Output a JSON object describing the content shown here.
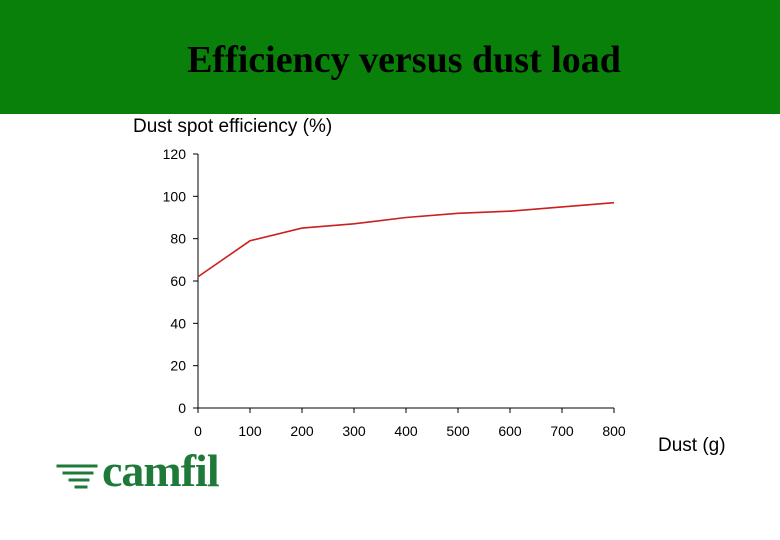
{
  "header": {
    "title": "Efficiency versus dust load"
  },
  "brand": {
    "logo_text": "camfil",
    "logo_color": "#1f7a3a",
    "banner_color": "#098009"
  },
  "chart_data": {
    "type": "line",
    "title": "Efficiency versus dust load",
    "ylabel": "Dust spot efficiency (%)",
    "xlabel": "Dust (g)",
    "x": [
      0,
      100,
      200,
      300,
      400,
      500,
      600,
      700,
      800
    ],
    "series": [
      {
        "values": [
          62,
          79,
          85,
          87,
          90,
          92,
          93,
          95,
          97
        ],
        "color": "#cc1f1f"
      }
    ],
    "xlim": [
      0,
      800
    ],
    "ylim": [
      0,
      120
    ],
    "xticks": [
      0,
      100,
      200,
      300,
      400,
      500,
      600,
      700,
      800
    ],
    "yticks": [
      0,
      20,
      40,
      60,
      80,
      100,
      120
    ],
    "grid": false,
    "legend": "none"
  }
}
